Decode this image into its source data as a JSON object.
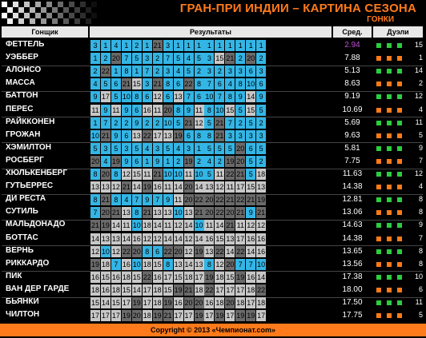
{
  "title": "ГРАН-ПРИ ИНДИИ – КАРТИНА СЕЗОНА",
  "subtitle": "ГОНКИ",
  "headers": {
    "driver": "Гонщик",
    "results": "Результаты",
    "avg": "Сред.",
    "duels": "Дуэли"
  },
  "footer": "Copyright © 2013 «Чемпионат.com»",
  "colors": {
    "points": "#33b5e5",
    "nopoints": "#c8c8c8",
    "dnf": "#6a6a6a",
    "win": "#2ecc40",
    "loss": "#ff7a1a",
    "accent": "#ff7a1a"
  },
  "drivers": [
    {
      "name": "ФЕТТЕЛЬ",
      "avg": "2.94",
      "avg_color": "#c04bd6",
      "duels": "15",
      "results": [
        "3",
        "1",
        "4",
        "1",
        "2",
        "1",
        "21",
        "3",
        "1",
        "1",
        "1",
        "1",
        "1",
        "1",
        "1",
        "1",
        "1"
      ]
    },
    {
      "name": "УЭББЕР",
      "avg": "7.88",
      "duels": "1",
      "results": [
        "1",
        "2",
        "20",
        "7",
        "5",
        "3",
        "2",
        "7",
        "5",
        "4",
        "5",
        "3",
        "15",
        "21",
        "2",
        "20",
        "2"
      ]
    },
    {
      "name": "АЛОНСО",
      "avg": "5.13",
      "duels": "14",
      "results": [
        "2",
        "22",
        "1",
        "8",
        "1",
        "7",
        "2",
        "3",
        "4",
        "5",
        "2",
        "3",
        "2",
        "3",
        "3",
        "6",
        "3"
      ]
    },
    {
      "name": "МАССА",
      "avg": "8.63",
      "duels": "2",
      "results": [
        "4",
        "5",
        "6",
        "21",
        "15",
        "3",
        "21",
        "8",
        "6",
        "22",
        "8",
        "7",
        "6",
        "4",
        "8",
        "10",
        "6"
      ]
    },
    {
      "name": "БАТТОН",
      "avg": "9.19",
      "duels": "12",
      "results": [
        "9",
        "17",
        "5",
        "10",
        "8",
        "6",
        "12",
        "6",
        "13",
        "7",
        "6",
        "10",
        "7",
        "8",
        "9",
        "14",
        "9"
      ]
    },
    {
      "name": "ПЕРЕС",
      "avg": "10.69",
      "duels": "4",
      "results": [
        "11",
        "9",
        "11",
        "9",
        "6",
        "16",
        "11",
        "20",
        "8",
        "9",
        "11",
        "8",
        "10",
        "15",
        "5",
        "15",
        "5"
      ]
    },
    {
      "name": "РАЙККОНЕН",
      "avg": "5.69",
      "duels": "11",
      "results": [
        "1",
        "7",
        "2",
        "2",
        "9",
        "2",
        "2",
        "10",
        "5",
        "21",
        "12",
        "5",
        "21",
        "7",
        "2",
        "5",
        "2"
      ]
    },
    {
      "name": "ГРОЖАН",
      "avg": "9.63",
      "duels": "5",
      "results": [
        "10",
        "21",
        "9",
        "6",
        "13",
        "22",
        "17",
        "13",
        "19",
        "6",
        "8",
        "8",
        "21",
        "3",
        "3",
        "3",
        "3"
      ]
    },
    {
      "name": "ХЭМИЛТОН",
      "avg": "5.81",
      "duels": "9",
      "results": [
        "5",
        "3",
        "5",
        "3",
        "5",
        "4",
        "3",
        "5",
        "4",
        "3",
        "1",
        "5",
        "5",
        "5",
        "20",
        "6",
        "5"
      ]
    },
    {
      "name": "РОСБЕРГ",
      "avg": "7.75",
      "duels": "7",
      "results": [
        "20",
        "4",
        "19",
        "9",
        "6",
        "1",
        "9",
        "1",
        "2",
        "19",
        "2",
        "4",
        "2",
        "19",
        "20",
        "5",
        "2"
      ]
    },
    {
      "name": "ХЮЛЬКЕНБЕРГ",
      "avg": "11.63",
      "duels": "12",
      "results": [
        "8",
        "20",
        "8",
        "12",
        "15",
        "11",
        "21",
        "10",
        "10",
        "11",
        "10",
        "5",
        "11",
        "22",
        "21",
        "5",
        "18"
      ]
    },
    {
      "name": "ГУТЬЕРРЕС",
      "avg": "14.38",
      "duels": "4",
      "results": [
        "13",
        "13",
        "12",
        "21",
        "14",
        "19",
        "16",
        "11",
        "14",
        "20",
        "14",
        "13",
        "12",
        "11",
        "17",
        "15",
        "13"
      ]
    },
    {
      "name": "ДИ РЕСТА",
      "avg": "12.81",
      "duels": "8",
      "results": [
        "8",
        "21",
        "8",
        "4",
        "7",
        "9",
        "7",
        "9",
        "11",
        "20",
        "22",
        "20",
        "22",
        "21",
        "22",
        "21",
        "19"
      ]
    },
    {
      "name": "СУТИЛЬ",
      "avg": "13.06",
      "duels": "8",
      "results": [
        "7",
        "20",
        "21",
        "13",
        "8",
        "21",
        "13",
        "13",
        "10",
        "13",
        "21",
        "20",
        "22",
        "20",
        "21",
        "9",
        "21"
      ]
    },
    {
      "name": "МАЛЬДОНАДО",
      "avg": "14.63",
      "duels": "9",
      "results": [
        "21",
        "19",
        "14",
        "11",
        "10",
        "18",
        "14",
        "11",
        "12",
        "14",
        "10",
        "11",
        "14",
        "21",
        "11",
        "12",
        "12"
      ]
    },
    {
      "name": "БОТТАС",
      "avg": "14.38",
      "duels": "7",
      "results": [
        "14",
        "13",
        "13",
        "14",
        "16",
        "12",
        "12",
        "14",
        "14",
        "12",
        "14",
        "16",
        "15",
        "13",
        "17",
        "16",
        "16"
      ]
    },
    {
      "name": "ВЕРНЬ",
      "avg": "13.65",
      "duels": "8",
      "results": [
        "12",
        "10",
        "12",
        "22",
        "20",
        "8",
        "6",
        "22",
        "20",
        "12",
        "19",
        "13",
        "22",
        "14",
        "22",
        "14",
        "16"
      ]
    },
    {
      "name": "РИККАРДО",
      "avg": "13.56",
      "duels": "8",
      "results": [
        "19",
        "18",
        "7",
        "16",
        "10",
        "18",
        "15",
        "8",
        "13",
        "14",
        "13",
        "8",
        "12",
        "20",
        "7",
        "7",
        "10"
      ]
    },
    {
      "name": "ПИК",
      "avg": "17.38",
      "duels": "10",
      "results": [
        "16",
        "15",
        "16",
        "18",
        "15",
        "22",
        "16",
        "17",
        "15",
        "18",
        "17",
        "19",
        "18",
        "15",
        "19",
        "16",
        "14"
      ]
    },
    {
      "name": "ВАН ДЕР ГАРДЕ",
      "avg": "18.00",
      "duels": "6",
      "results": [
        "18",
        "16",
        "18",
        "15",
        "14",
        "17",
        "18",
        "15",
        "19",
        "21",
        "18",
        "22",
        "17",
        "17",
        "17",
        "18",
        "22"
      ]
    },
    {
      "name": "БЬЯНКИ",
      "avg": "17.50",
      "duels": "11",
      "results": [
        "15",
        "14",
        "15",
        "17",
        "19",
        "17",
        "18",
        "19",
        "16",
        "20",
        "20",
        "16",
        "18",
        "20",
        "18",
        "17",
        "18"
      ]
    },
    {
      "name": "ЧИЛТОН",
      "avg": "17.75",
      "duels": "5",
      "results": [
        "17",
        "17",
        "17",
        "19",
        "20",
        "18",
        "19",
        "21",
        "17",
        "17",
        "19",
        "17",
        "19",
        "17",
        "19",
        "19",
        "17"
      ]
    }
  ],
  "duel_marks": [
    [
      "W",
      "W",
      "W"
    ],
    [
      "L",
      "L",
      "L"
    ],
    [
      "W",
      "W",
      "W"
    ],
    [
      "L",
      "L",
      "L"
    ],
    [
      "W",
      "W",
      "W"
    ],
    [
      "L",
      "L",
      "L"
    ],
    [
      "W",
      "W",
      "W"
    ],
    [
      "L",
      "L",
      "L"
    ],
    [
      "W",
      "W",
      "W"
    ],
    [
      "L",
      "L",
      "L"
    ],
    [
      "W",
      "W",
      "W"
    ],
    [
      "L",
      "L",
      "L"
    ],
    [
      "W",
      "W",
      "W"
    ],
    [
      "L",
      "L",
      "L"
    ],
    [
      "W",
      "W",
      "W"
    ],
    [
      "L",
      "L",
      "L"
    ],
    [
      "W",
      "W",
      "W"
    ],
    [
      "L",
      "L",
      "L"
    ],
    [
      "W",
      "W",
      "W"
    ],
    [
      "L",
      "L",
      "L"
    ],
    [
      "W",
      "W",
      "W"
    ],
    [
      "L",
      "L",
      "L"
    ]
  ]
}
